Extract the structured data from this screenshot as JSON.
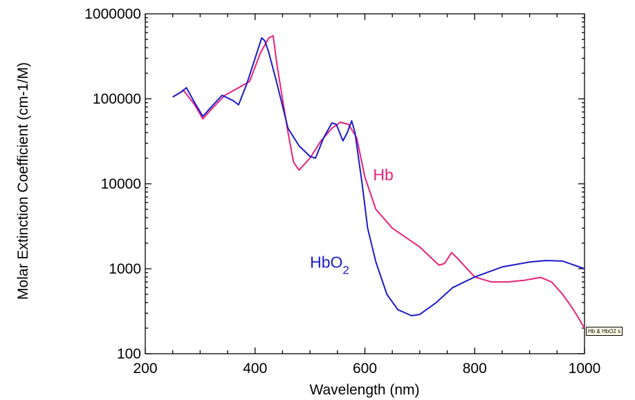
{
  "chart_data": {
    "type": "line",
    "xlabel": "Wavelength (nm)",
    "ylabel": "Molar Extinction Coefficient (cm-1/M)",
    "xlim": [
      200,
      1000
    ],
    "ylim": [
      100,
      1000000
    ],
    "yscale": "log",
    "x_ticks": [
      "200",
      "400",
      "600",
      "800",
      "1000"
    ],
    "y_ticks": [
      "100",
      "1000",
      "10000",
      "100000",
      "1000000"
    ],
    "grid": false,
    "series": [
      {
        "name": "Hb",
        "color": "#e8207a",
        "points": [
          [
            250,
            105000
          ],
          [
            270,
            125000
          ],
          [
            290,
            85000
          ],
          [
            305,
            58000
          ],
          [
            320,
            75000
          ],
          [
            345,
            110000
          ],
          [
            370,
            135000
          ],
          [
            390,
            160000
          ],
          [
            410,
            350000
          ],
          [
            425,
            520000
          ],
          [
            433,
            550000
          ],
          [
            440,
            250000
          ],
          [
            450,
            100000
          ],
          [
            460,
            40000
          ],
          [
            470,
            18000
          ],
          [
            480,
            14500
          ],
          [
            500,
            20000
          ],
          [
            520,
            32000
          ],
          [
            540,
            45000
          ],
          [
            555,
            53000
          ],
          [
            570,
            50000
          ],
          [
            585,
            35000
          ],
          [
            600,
            12000
          ],
          [
            620,
            5000
          ],
          [
            650,
            3000
          ],
          [
            700,
            1800
          ],
          [
            735,
            1100
          ],
          [
            745,
            1150
          ],
          [
            758,
            1550
          ],
          [
            770,
            1300
          ],
          [
            800,
            800
          ],
          [
            830,
            700
          ],
          [
            860,
            700
          ],
          [
            890,
            730
          ],
          [
            920,
            790
          ],
          [
            940,
            700
          ],
          [
            960,
            500
          ],
          [
            980,
            330
          ],
          [
            1000,
            200
          ]
        ]
      },
      {
        "name": "HbO2",
        "color": "#1a1acc",
        "points": [
          [
            250,
            105000
          ],
          [
            265,
            120000
          ],
          [
            275,
            135000
          ],
          [
            290,
            90000
          ],
          [
            305,
            62000
          ],
          [
            320,
            80000
          ],
          [
            340,
            110000
          ],
          [
            360,
            95000
          ],
          [
            370,
            85000
          ],
          [
            385,
            150000
          ],
          [
            400,
            300000
          ],
          [
            412,
            520000
          ],
          [
            418,
            480000
          ],
          [
            425,
            350000
          ],
          [
            440,
            150000
          ],
          [
            460,
            45000
          ],
          [
            480,
            28000
          ],
          [
            500,
            21000
          ],
          [
            510,
            20000
          ],
          [
            525,
            35000
          ],
          [
            540,
            52000
          ],
          [
            548,
            50000
          ],
          [
            560,
            32000
          ],
          [
            568,
            40000
          ],
          [
            576,
            55000
          ],
          [
            582,
            40000
          ],
          [
            595,
            10000
          ],
          [
            605,
            3000
          ],
          [
            620,
            1200
          ],
          [
            640,
            500
          ],
          [
            660,
            330
          ],
          [
            685,
            280
          ],
          [
            700,
            290
          ],
          [
            730,
            400
          ],
          [
            760,
            600
          ],
          [
            800,
            800
          ],
          [
            850,
            1050
          ],
          [
            900,
            1200
          ],
          [
            930,
            1250
          ],
          [
            960,
            1230
          ],
          [
            1000,
            1000
          ]
        ]
      }
    ],
    "annotations": [
      {
        "text": "Hb",
        "x": 615,
        "y": 11000,
        "color": "#e8207a"
      },
      {
        "text": "HbO",
        "subscript": "2",
        "x": 500,
        "y": 1030,
        "color": "#1a1acc"
      }
    ],
    "tooltip": "Hb & HbO2 s"
  }
}
